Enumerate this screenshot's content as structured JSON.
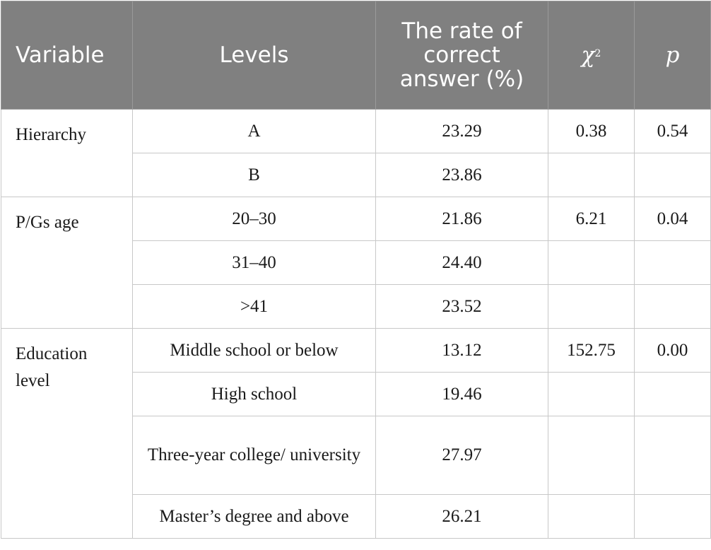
{
  "table": {
    "headers": [
      "Variable",
      "Levels",
      "The rate of correct answer (%)",
      "χ",
      "p"
    ],
    "header_chi_superscript": "2",
    "groups": [
      {
        "variable": "Hierarchy",
        "chi2": "0.38",
        "p": "0.54",
        "rows": [
          {
            "level": "A",
            "rate": "23.29"
          },
          {
            "level": "B",
            "rate": "23.86"
          }
        ]
      },
      {
        "variable": "P/Gs age",
        "chi2": "6.21",
        "p": "0.04",
        "rows": [
          {
            "level": "20–30",
            "rate": "21.86"
          },
          {
            "level": "31–40",
            "rate": "24.40"
          },
          {
            "level": ">41",
            "rate": "23.52"
          }
        ]
      },
      {
        "variable": "Education level",
        "chi2": "152.75",
        "p": "0.00",
        "rows": [
          {
            "level": "Middle school or below",
            "rate": "13.12"
          },
          {
            "level": "High school",
            "rate": "19.46"
          },
          {
            "level": "Three-year college/ university",
            "rate": "27.97"
          },
          {
            "level": "Master’s degree and above",
            "rate": "26.21"
          }
        ]
      }
    ]
  }
}
